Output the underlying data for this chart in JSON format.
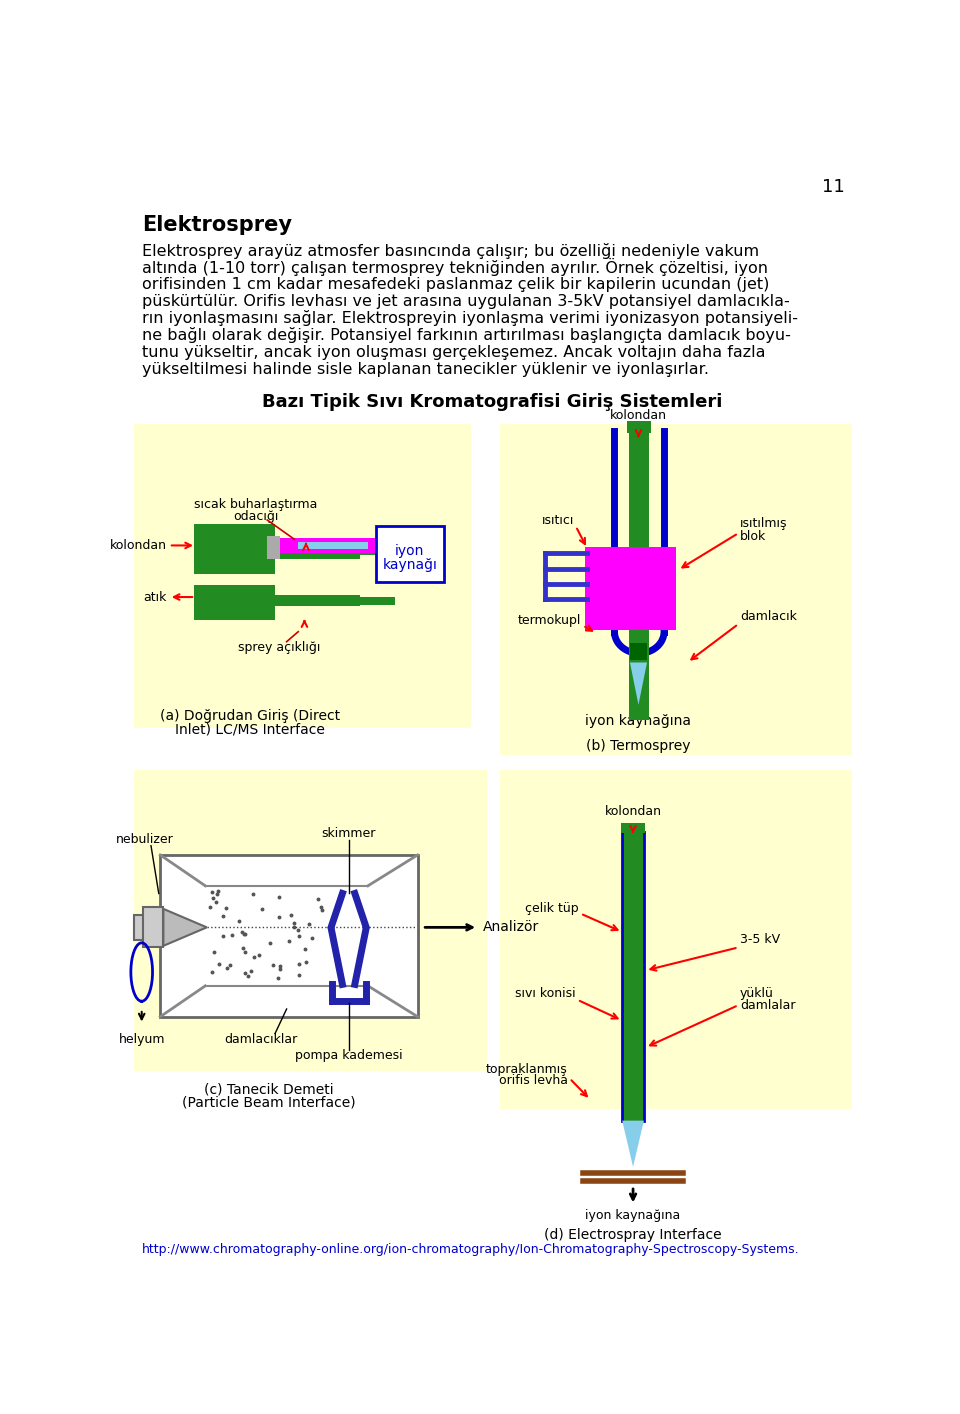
{
  "page_number": "11",
  "title_bold": "Elektrosprey",
  "line1": "Elektrosprey arayüz atmosfer basıncında çalışır; bu özelliği nedeniyle vakum",
  "line2": "altında (1-10 torr) çalışan termosprey tekniğinden ayrılır. Örnek çözeltisi, iyon",
  "line3": "orifisinden 1 cm kadar mesafedeki paslanmaz çelik bir kapilerin ucundan (jet)",
  "line4": "püskürtülür. Orifis levhası ve jet arasına uygulanan 3-5kV potansiyel damlacıkla-",
  "line5": "rın iyonlaşmasını sağlar. Elektrospreyin iyonlaşma verimi iyonizasyon potansiyeli-",
  "line6": "ne bağlı olarak değişir. Potansiyel farkının artırılması başlangıçta damlacık boyu-",
  "line7": "tunu yükseltir, ancak iyon oluşması gerçekleşemez. Ancak voltajın daha fazla",
  "line8": "yükseltilmesi halinde sisle kaplanan tanecikler yüklenir ve iyonlaşırlar.",
  "diagram_title": "Bazı Tipik Sıvı Kromatografisi Giriş Sistemleri",
  "url": "http://www.chromatography-online.org/ion-chromatography/Ion-Chromatography-Spectroscopy-Systems.",
  "url_color": "#0000CC",
  "green": "#228B22",
  "darkgreen": "#006400",
  "magenta": "#FF00FF",
  "cyan_light": "#87CEEB",
  "blue": "#0000CC",
  "red": "#CC0000",
  "panel_bg": "#FFFFD0",
  "gray": "#888888",
  "dark_gray": "#555555"
}
